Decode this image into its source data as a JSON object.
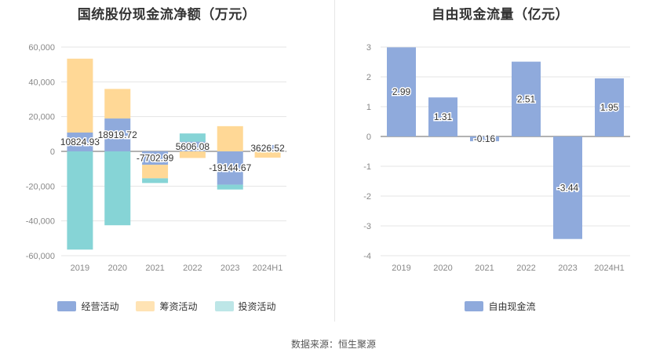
{
  "left_title": "国统股份现金流净额（万元）",
  "right_title": "自由现金流量（亿元）",
  "source": "数据来源：恒生聚源",
  "colors": {
    "operating": "#8faadc",
    "financing": "#ffd896",
    "investing": "#86d4d6",
    "investing_legend": "#bde6e7",
    "free_cash": "#8faadc"
  },
  "chart_data": [
    {
      "type": "bar",
      "stacked": true,
      "title": "国统股份现金流净额（万元）",
      "categories": [
        "2019",
        "2020",
        "2021",
        "2022",
        "2023",
        "2024H1"
      ],
      "ylim": [
        -60000,
        60000
      ],
      "yticks": [
        60000,
        40000,
        20000,
        0,
        -20000,
        -40000,
        -60000
      ],
      "ytick_labels": [
        "60,000",
        "40,000",
        "20,000",
        "0",
        "-20,000",
        "-40,000",
        "-60,000"
      ],
      "grid": true,
      "legend_position": "bottom",
      "series": [
        {
          "name": "经营活动",
          "values": [
            10824.93,
            18919.72,
            -7702.99,
            5606.08,
            -19144.67,
            3626.52
          ],
          "labels": [
            "10824.93",
            "18919.72",
            "-7702.99",
            "5606.08",
            "-19144.67",
            "3626.52"
          ]
        },
        {
          "name": "筹资活动",
          "values": [
            42500,
            17000,
            -7800,
            -3800,
            14500,
            -3600
          ]
        },
        {
          "name": "投资活动",
          "values": [
            -56500,
            -42500,
            -2700,
            4700,
            -2800,
            0
          ]
        }
      ]
    },
    {
      "type": "bar",
      "title": "自由现金流量（亿元）",
      "categories": [
        "2019",
        "2020",
        "2021",
        "2022",
        "2023",
        "2024H1"
      ],
      "ylim": [
        -4,
        3
      ],
      "yticks": [
        3,
        2,
        1,
        0,
        -1,
        -2,
        -3,
        -4
      ],
      "ytick_labels": [
        "3",
        "2",
        "1",
        "0",
        "-1",
        "-2",
        "-3",
        "-4"
      ],
      "grid": true,
      "legend_position": "bottom",
      "series": [
        {
          "name": "自由现金流",
          "values": [
            2.99,
            1.31,
            -0.16,
            2.51,
            -3.44,
            1.95
          ],
          "labels": [
            "2.99",
            "1.31",
            "-0.16",
            "2.51",
            "-3.44",
            "1.95"
          ]
        }
      ]
    }
  ]
}
